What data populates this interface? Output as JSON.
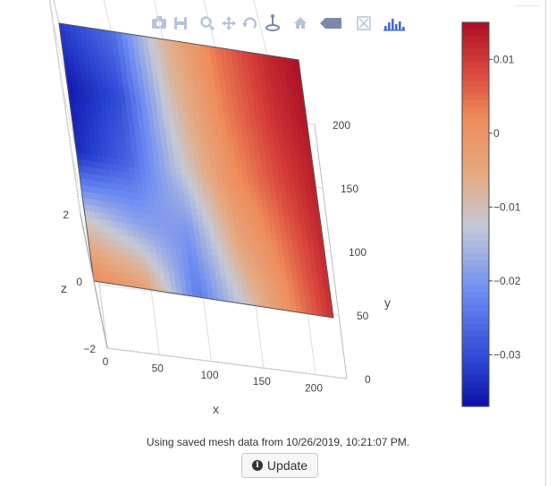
{
  "toolbar": {
    "icons": [
      "camera-icon",
      "save-icon",
      "zoom-icon",
      "pan-icon",
      "orbit-rotation-icon",
      "turntable-rotation-icon",
      "home-icon",
      "hover-closest-icon",
      "autoscale-icon",
      "plotly-logo-icon"
    ],
    "icon_color": "#b7c3d7",
    "active_color": "#7a8aa8",
    "logo_color": "#3f6ad8"
  },
  "chart_data": {
    "type": "surface",
    "xlabel": "x",
    "ylabel": "y",
    "zlabel": "z",
    "x_ticks": [
      0,
      50,
      100,
      150,
      200
    ],
    "y_ticks": [
      0,
      50,
      100,
      150,
      200
    ],
    "z_ticks": [
      -2,
      0,
      2
    ],
    "xlim": [
      0,
      230
    ],
    "ylim": [
      0,
      200
    ],
    "zlim": [
      -2,
      2
    ],
    "surface_z_value": 0,
    "surface_color_grid": {
      "rows_y": [
        200,
        150,
        100,
        50,
        0
      ],
      "cols_x": [
        0,
        50,
        100,
        150,
        200,
        230
      ],
      "values": [
        [
          -0.032,
          -0.026,
          -0.008,
          0.004,
          0.012,
          0.015
        ],
        [
          -0.036,
          -0.03,
          -0.01,
          0.003,
          0.011,
          0.014
        ],
        [
          -0.034,
          -0.027,
          -0.013,
          0.001,
          0.009,
          0.013
        ],
        [
          -0.012,
          -0.018,
          -0.02,
          -0.004,
          0.006,
          0.012
        ],
        [
          0.002,
          -0.003,
          -0.024,
          -0.01,
          0.004,
          0.011
        ]
      ]
    },
    "colorbar": {
      "range": [
        -0.037,
        0.015
      ],
      "ticks": [
        0.01,
        0,
        -0.01,
        -0.02,
        -0.03
      ],
      "tick_labels": [
        "0.01",
        "0",
        "−0.01",
        "−0.02",
        "−0.03"
      ],
      "colorscale": [
        [
          0.0,
          "#0e10a7"
        ],
        [
          0.12,
          "#2c47d4"
        ],
        [
          0.3,
          "#6d8cf3"
        ],
        [
          0.47,
          "#c5c9d6"
        ],
        [
          0.6,
          "#e4aa84"
        ],
        [
          0.75,
          "#ee8c5a"
        ],
        [
          0.88,
          "#d8433b"
        ],
        [
          1.0,
          "#ad0f25"
        ]
      ]
    }
  },
  "status": {
    "message": "Using saved mesh data from 10/26/2019, 10:21:07 PM."
  },
  "update_button": {
    "label": "Update"
  }
}
